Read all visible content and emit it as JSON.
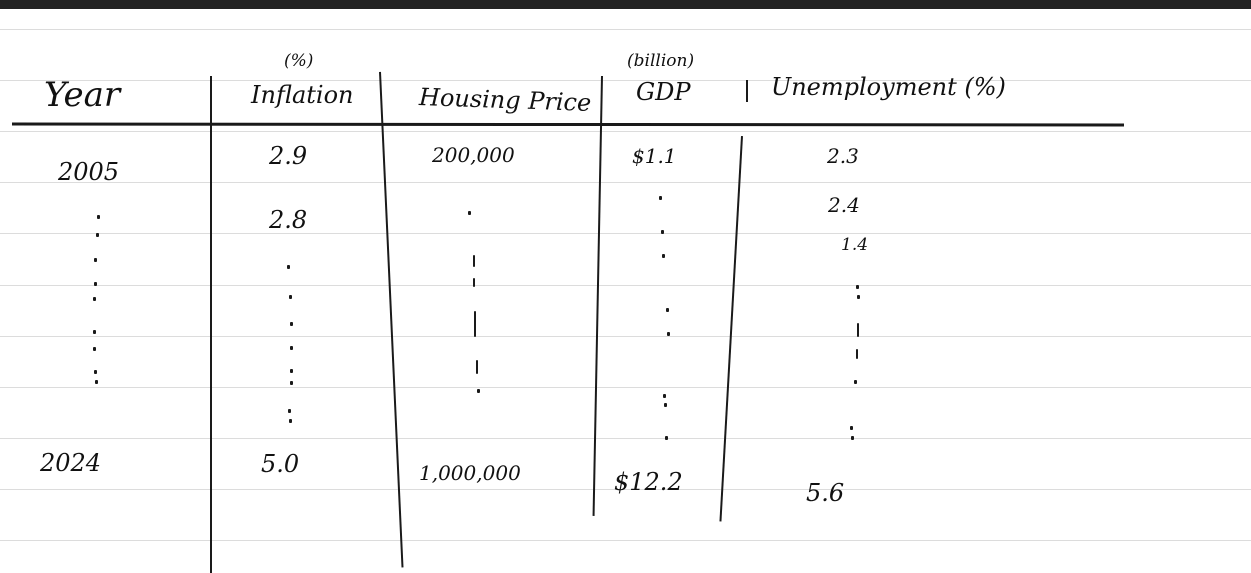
{
  "headers": {
    "year": "Year",
    "inflation_unit": "(%)",
    "inflation": "Inflation",
    "housing": "Housing Price",
    "gdp_unit": "(billion)",
    "gdp": "GDP",
    "unemployment": "Unemployment (%)"
  },
  "rows": {
    "first": {
      "year": "2005",
      "inflation": "2.9",
      "housing": "200,000",
      "gdp": "$1.1",
      "unemployment": "2.3"
    },
    "second": {
      "inflation": "2.8",
      "unemployment": "2.4"
    },
    "third": {
      "unemployment": "1.4"
    },
    "last": {
      "year": "2024",
      "inflation": "5.0",
      "housing": "1,000,000",
      "gdp": "$12.2",
      "unemployment": "5.6"
    }
  },
  "ink_color": "#1a1a1a"
}
